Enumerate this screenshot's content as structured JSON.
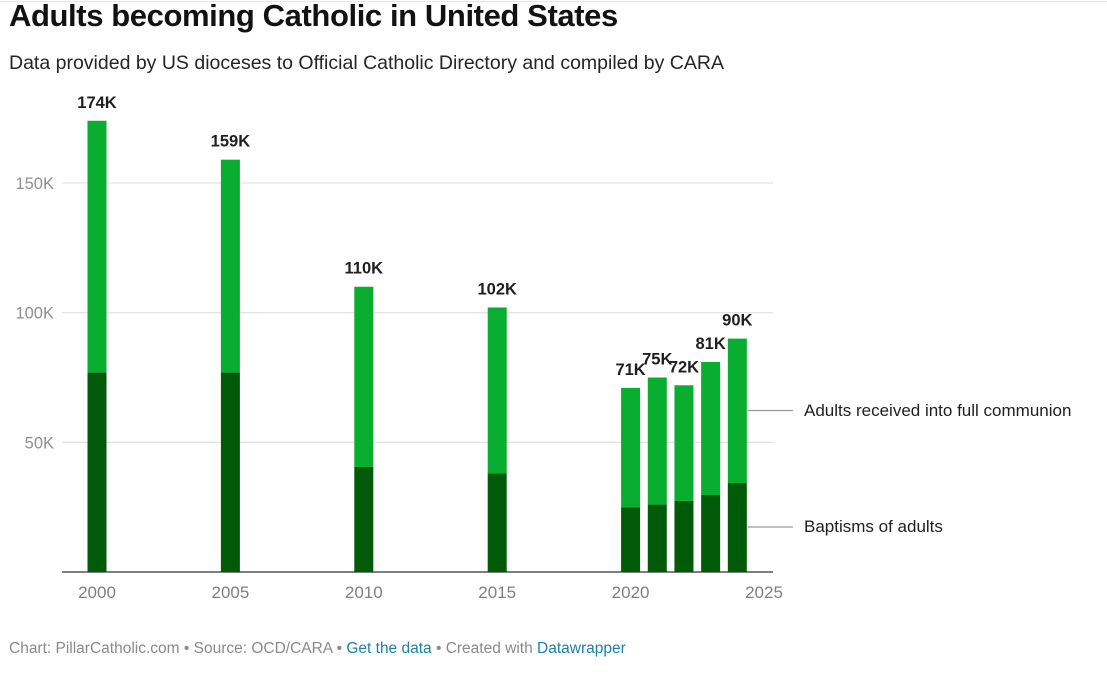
{
  "header": {
    "title": "Adults becoming Catholic in United States",
    "subtitle": "Data provided by US dioceses to Official Catholic Directory and compiled by CARA"
  },
  "footer": {
    "chart_credit": "Chart: PillarCatholic.com",
    "separator": " • ",
    "source": "Source: OCD/CARA",
    "get_data_link": "Get the data",
    "created_with": "Created with",
    "datawrapper_link": "Datawrapper"
  },
  "colors": {
    "full_communion": "#09ad2f",
    "baptisms": "#005a07",
    "gridline": "#e3e3e3",
    "axis": "#333333",
    "tick_label": "#8f8f8f",
    "value_label": "#1f1f1f"
  },
  "chart_data": {
    "type": "bar",
    "stacked": true,
    "title": "Adults becoming Catholic in United States",
    "subtitle": "Data provided by US dioceses to Official Catholic Directory and compiled by CARA",
    "xlabel": "",
    "ylabel": "",
    "x": [
      2000,
      2005,
      2010,
      2015,
      2020,
      2021,
      2022,
      2023,
      2024
    ],
    "xlim": [
      1999,
      2025.2
    ],
    "xticks": [
      2000,
      2005,
      2010,
      2015,
      2020,
      2025
    ],
    "ylim": [
      0,
      175000
    ],
    "yticks": [
      50000,
      100000,
      150000
    ],
    "ytick_labels": [
      "50K",
      "100K",
      "150K"
    ],
    "grid": true,
    "series": [
      {
        "name": "Baptisms of adults",
        "color": "#005a07",
        "values": [
          77000,
          77000,
          40500,
          38000,
          25000,
          26000,
          27400,
          29700,
          34300
        ]
      },
      {
        "name": "Adults received into full communion",
        "color": "#09ad2f",
        "values": [
          97000,
          82000,
          69500,
          64000,
          46000,
          49000,
          44600,
          51300,
          55700
        ]
      }
    ],
    "totals": [
      174000,
      159000,
      110000,
      102000,
      71000,
      75000,
      72000,
      81000,
      90000
    ],
    "total_labels": [
      "174K",
      "159K",
      "110K",
      "102K",
      "71K",
      "75K",
      "72K",
      "81K",
      "90K"
    ],
    "legend": "right, inline labels"
  }
}
